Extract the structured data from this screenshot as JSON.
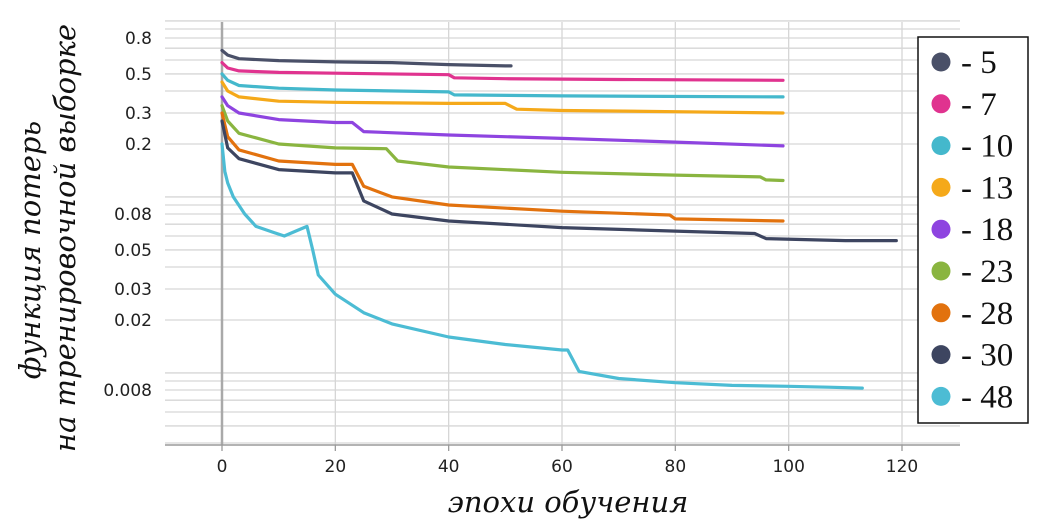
{
  "chart_data": {
    "type": "line",
    "xlabel": "эпохи обучения",
    "ylabel_lines": [
      "функция потерь",
      "на тренировочной выборке"
    ],
    "x_ticks": [
      0,
      20,
      40,
      60,
      80,
      100,
      120
    ],
    "xlim": [
      -10,
      130
    ],
    "y_scale": "log",
    "ylim": [
      0.0035,
      1.0
    ],
    "y_tick_labels": [
      {
        "v": 0.8,
        "label": "0.8"
      },
      {
        "v": 0.5,
        "label": "0.5"
      },
      {
        "v": 0.3,
        "label": "0.3"
      },
      {
        "v": 0.2,
        "label": "0.2"
      },
      {
        "v": 0.08,
        "label": "0.08"
      },
      {
        "v": 0.05,
        "label": "0.05"
      },
      {
        "v": 0.03,
        "label": "0.03"
      },
      {
        "v": 0.02,
        "label": "0.02"
      },
      {
        "v": 0.008,
        "label": "0.008"
      }
    ],
    "y_grid": [
      1.0,
      0.9,
      0.8,
      0.7,
      0.6,
      0.5,
      0.4,
      0.3,
      0.2,
      0.1,
      0.09,
      0.08,
      0.07,
      0.06,
      0.05,
      0.04,
      0.03,
      0.02,
      0.01,
      0.009,
      0.008,
      0.007,
      0.006,
      0.005,
      0.004
    ],
    "grid": true,
    "legend_position": "right",
    "series": [
      {
        "name": "- 5",
        "color": "#4a5068",
        "points": [
          [
            0,
            0.68
          ],
          [
            1,
            0.64
          ],
          [
            3,
            0.61
          ],
          [
            10,
            0.595
          ],
          [
            20,
            0.585
          ],
          [
            30,
            0.58
          ],
          [
            40,
            0.565
          ],
          [
            50,
            0.555
          ],
          [
            51,
            0.555
          ]
        ]
      },
      {
        "name": "- 7",
        "color": "#e0338f",
        "points": [
          [
            0,
            0.58
          ],
          [
            1,
            0.54
          ],
          [
            3,
            0.52
          ],
          [
            10,
            0.51
          ],
          [
            20,
            0.505
          ],
          [
            40,
            0.495
          ],
          [
            41,
            0.475
          ],
          [
            50,
            0.47
          ],
          [
            70,
            0.465
          ],
          [
            99,
            0.46
          ]
        ]
      },
      {
        "name": "- 10",
        "color": "#44b8cc",
        "points": [
          [
            0,
            0.5
          ],
          [
            1,
            0.46
          ],
          [
            3,
            0.43
          ],
          [
            10,
            0.415
          ],
          [
            20,
            0.405
          ],
          [
            40,
            0.395
          ],
          [
            41,
            0.38
          ],
          [
            60,
            0.375
          ],
          [
            99,
            0.37
          ]
        ]
      },
      {
        "name": "- 13",
        "color": "#f5a91a",
        "points": [
          [
            0,
            0.45
          ],
          [
            1,
            0.4
          ],
          [
            3,
            0.37
          ],
          [
            10,
            0.35
          ],
          [
            20,
            0.345
          ],
          [
            40,
            0.34
          ],
          [
            50,
            0.34
          ],
          [
            52,
            0.315
          ],
          [
            60,
            0.31
          ],
          [
            80,
            0.305
          ],
          [
            99,
            0.3
          ]
        ]
      },
      {
        "name": "- 18",
        "color": "#8e44e0",
        "points": [
          [
            0,
            0.37
          ],
          [
            1,
            0.33
          ],
          [
            3,
            0.3
          ],
          [
            10,
            0.275
          ],
          [
            20,
            0.265
          ],
          [
            23,
            0.265
          ],
          [
            25,
            0.235
          ],
          [
            40,
            0.225
          ],
          [
            60,
            0.215
          ],
          [
            80,
            0.205
          ],
          [
            99,
            0.195
          ]
        ]
      },
      {
        "name": "- 23",
        "color": "#8ab540",
        "points": [
          [
            0,
            0.33
          ],
          [
            1,
            0.27
          ],
          [
            3,
            0.23
          ],
          [
            10,
            0.2
          ],
          [
            20,
            0.19
          ],
          [
            29,
            0.188
          ],
          [
            31,
            0.16
          ],
          [
            40,
            0.148
          ],
          [
            60,
            0.138
          ],
          [
            80,
            0.133
          ],
          [
            95,
            0.13
          ],
          [
            96,
            0.125
          ],
          [
            99,
            0.124
          ]
        ]
      },
      {
        "name": "- 28",
        "color": "#e2720e",
        "points": [
          [
            0,
            0.3
          ],
          [
            1,
            0.22
          ],
          [
            3,
            0.185
          ],
          [
            10,
            0.16
          ],
          [
            20,
            0.153
          ],
          [
            23,
            0.153
          ],
          [
            25,
            0.115
          ],
          [
            30,
            0.1
          ],
          [
            40,
            0.09
          ],
          [
            60,
            0.083
          ],
          [
            79,
            0.079
          ],
          [
            80,
            0.075
          ],
          [
            90,
            0.074
          ],
          [
            99,
            0.073
          ]
        ]
      },
      {
        "name": "- 30",
        "color": "#3d4560",
        "points": [
          [
            0,
            0.27
          ],
          [
            1,
            0.19
          ],
          [
            3,
            0.165
          ],
          [
            10,
            0.143
          ],
          [
            20,
            0.137
          ],
          [
            23,
            0.137
          ],
          [
            25,
            0.095
          ],
          [
            30,
            0.08
          ],
          [
            40,
            0.073
          ],
          [
            60,
            0.067
          ],
          [
            80,
            0.064
          ],
          [
            94,
            0.062
          ],
          [
            96,
            0.058
          ],
          [
            110,
            0.0565
          ],
          [
            119,
            0.0565
          ]
        ]
      },
      {
        "name": "- 48",
        "color": "#4cbcd4",
        "points": [
          [
            0,
            0.2
          ],
          [
            0.5,
            0.14
          ],
          [
            1,
            0.12
          ],
          [
            2,
            0.1
          ],
          [
            4,
            0.08
          ],
          [
            6,
            0.068
          ],
          [
            9,
            0.063
          ],
          [
            11,
            0.06
          ],
          [
            13,
            0.064
          ],
          [
            15,
            0.068
          ],
          [
            16,
            0.05
          ],
          [
            17,
            0.036
          ],
          [
            20,
            0.028
          ],
          [
            25,
            0.022
          ],
          [
            30,
            0.019
          ],
          [
            40,
            0.016
          ],
          [
            50,
            0.0145
          ],
          [
            60,
            0.0135
          ],
          [
            61,
            0.0135
          ],
          [
            63,
            0.0102
          ],
          [
            70,
            0.0093
          ],
          [
            80,
            0.0088
          ],
          [
            90,
            0.0085
          ],
          [
            100,
            0.0084
          ],
          [
            107,
            0.0083
          ],
          [
            113,
            0.0082
          ]
        ]
      }
    ]
  }
}
